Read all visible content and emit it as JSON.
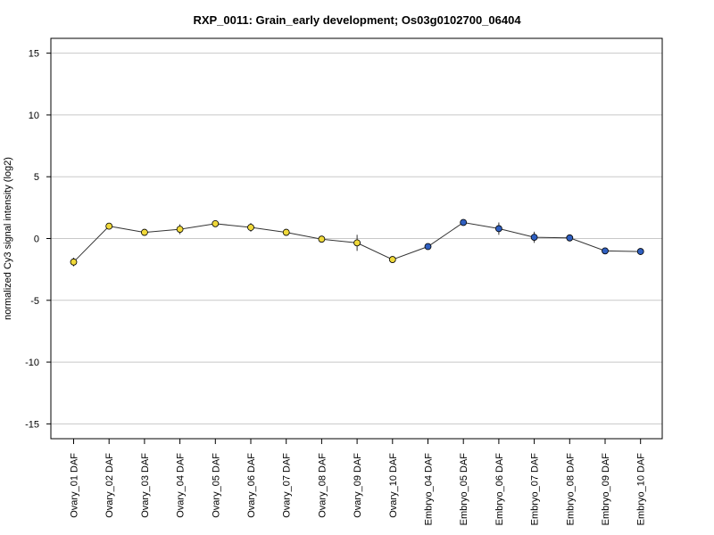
{
  "chart_data": {
    "type": "line",
    "title": "RXP_0011: Grain_early development; Os03g0102700_06404",
    "xlabel": "",
    "ylabel": "normalized Cy3 signal intensity (log2)",
    "ylim": [
      -16.2,
      16.2
    ],
    "yticks": [
      15,
      10,
      5,
      0,
      -5,
      -10,
      -15
    ],
    "ytick_labels": [
      "15",
      "10",
      "5",
      "0",
      "-5",
      "-10",
      "-15"
    ],
    "grid": "horizontal",
    "categories": [
      "Ovary_01 DAF",
      "Ovary_02 DAF",
      "Ovary_03 DAF",
      "Ovary_04 DAF",
      "Ovary_05 DAF",
      "Ovary_06 DAF",
      "Ovary_07 DAF",
      "Ovary_08 DAF",
      "Ovary_09 DAF",
      "Ovary_10 DAF",
      "Embryo_04 DAF",
      "Embryo_05 DAF",
      "Embryo_06 DAF",
      "Embryo_07 DAF",
      "Embryo_08 DAF",
      "Embryo_09 DAF",
      "Embryo_10 DAF"
    ],
    "values": [
      -1.9,
      1.0,
      0.5,
      0.75,
      1.2,
      0.9,
      0.5,
      -0.05,
      -0.35,
      -1.7,
      -0.65,
      1.3,
      0.8,
      0.1,
      0.05,
      -1.0,
      -1.05
    ],
    "error": [
      0.35,
      0.15,
      0.15,
      0.4,
      0.2,
      0.35,
      0.2,
      0.25,
      0.65,
      0.1,
      0.1,
      0.1,
      0.5,
      0.45,
      0.1,
      0.2,
      0.1
    ],
    "colors": [
      "#f0d93a",
      "#f0d93a",
      "#f0d93a",
      "#f0d93a",
      "#f0d93a",
      "#f0d93a",
      "#f0d93a",
      "#f0d93a",
      "#f0d93a",
      "#f0d93a",
      "#2f5fc0",
      "#2f5fc0",
      "#2f5fc0",
      "#2f5fc0",
      "#2f5fc0",
      "#2f5fc0",
      "#2f5fc0"
    ],
    "line_color": "#333333",
    "grid_color": "#c8c8c8"
  }
}
